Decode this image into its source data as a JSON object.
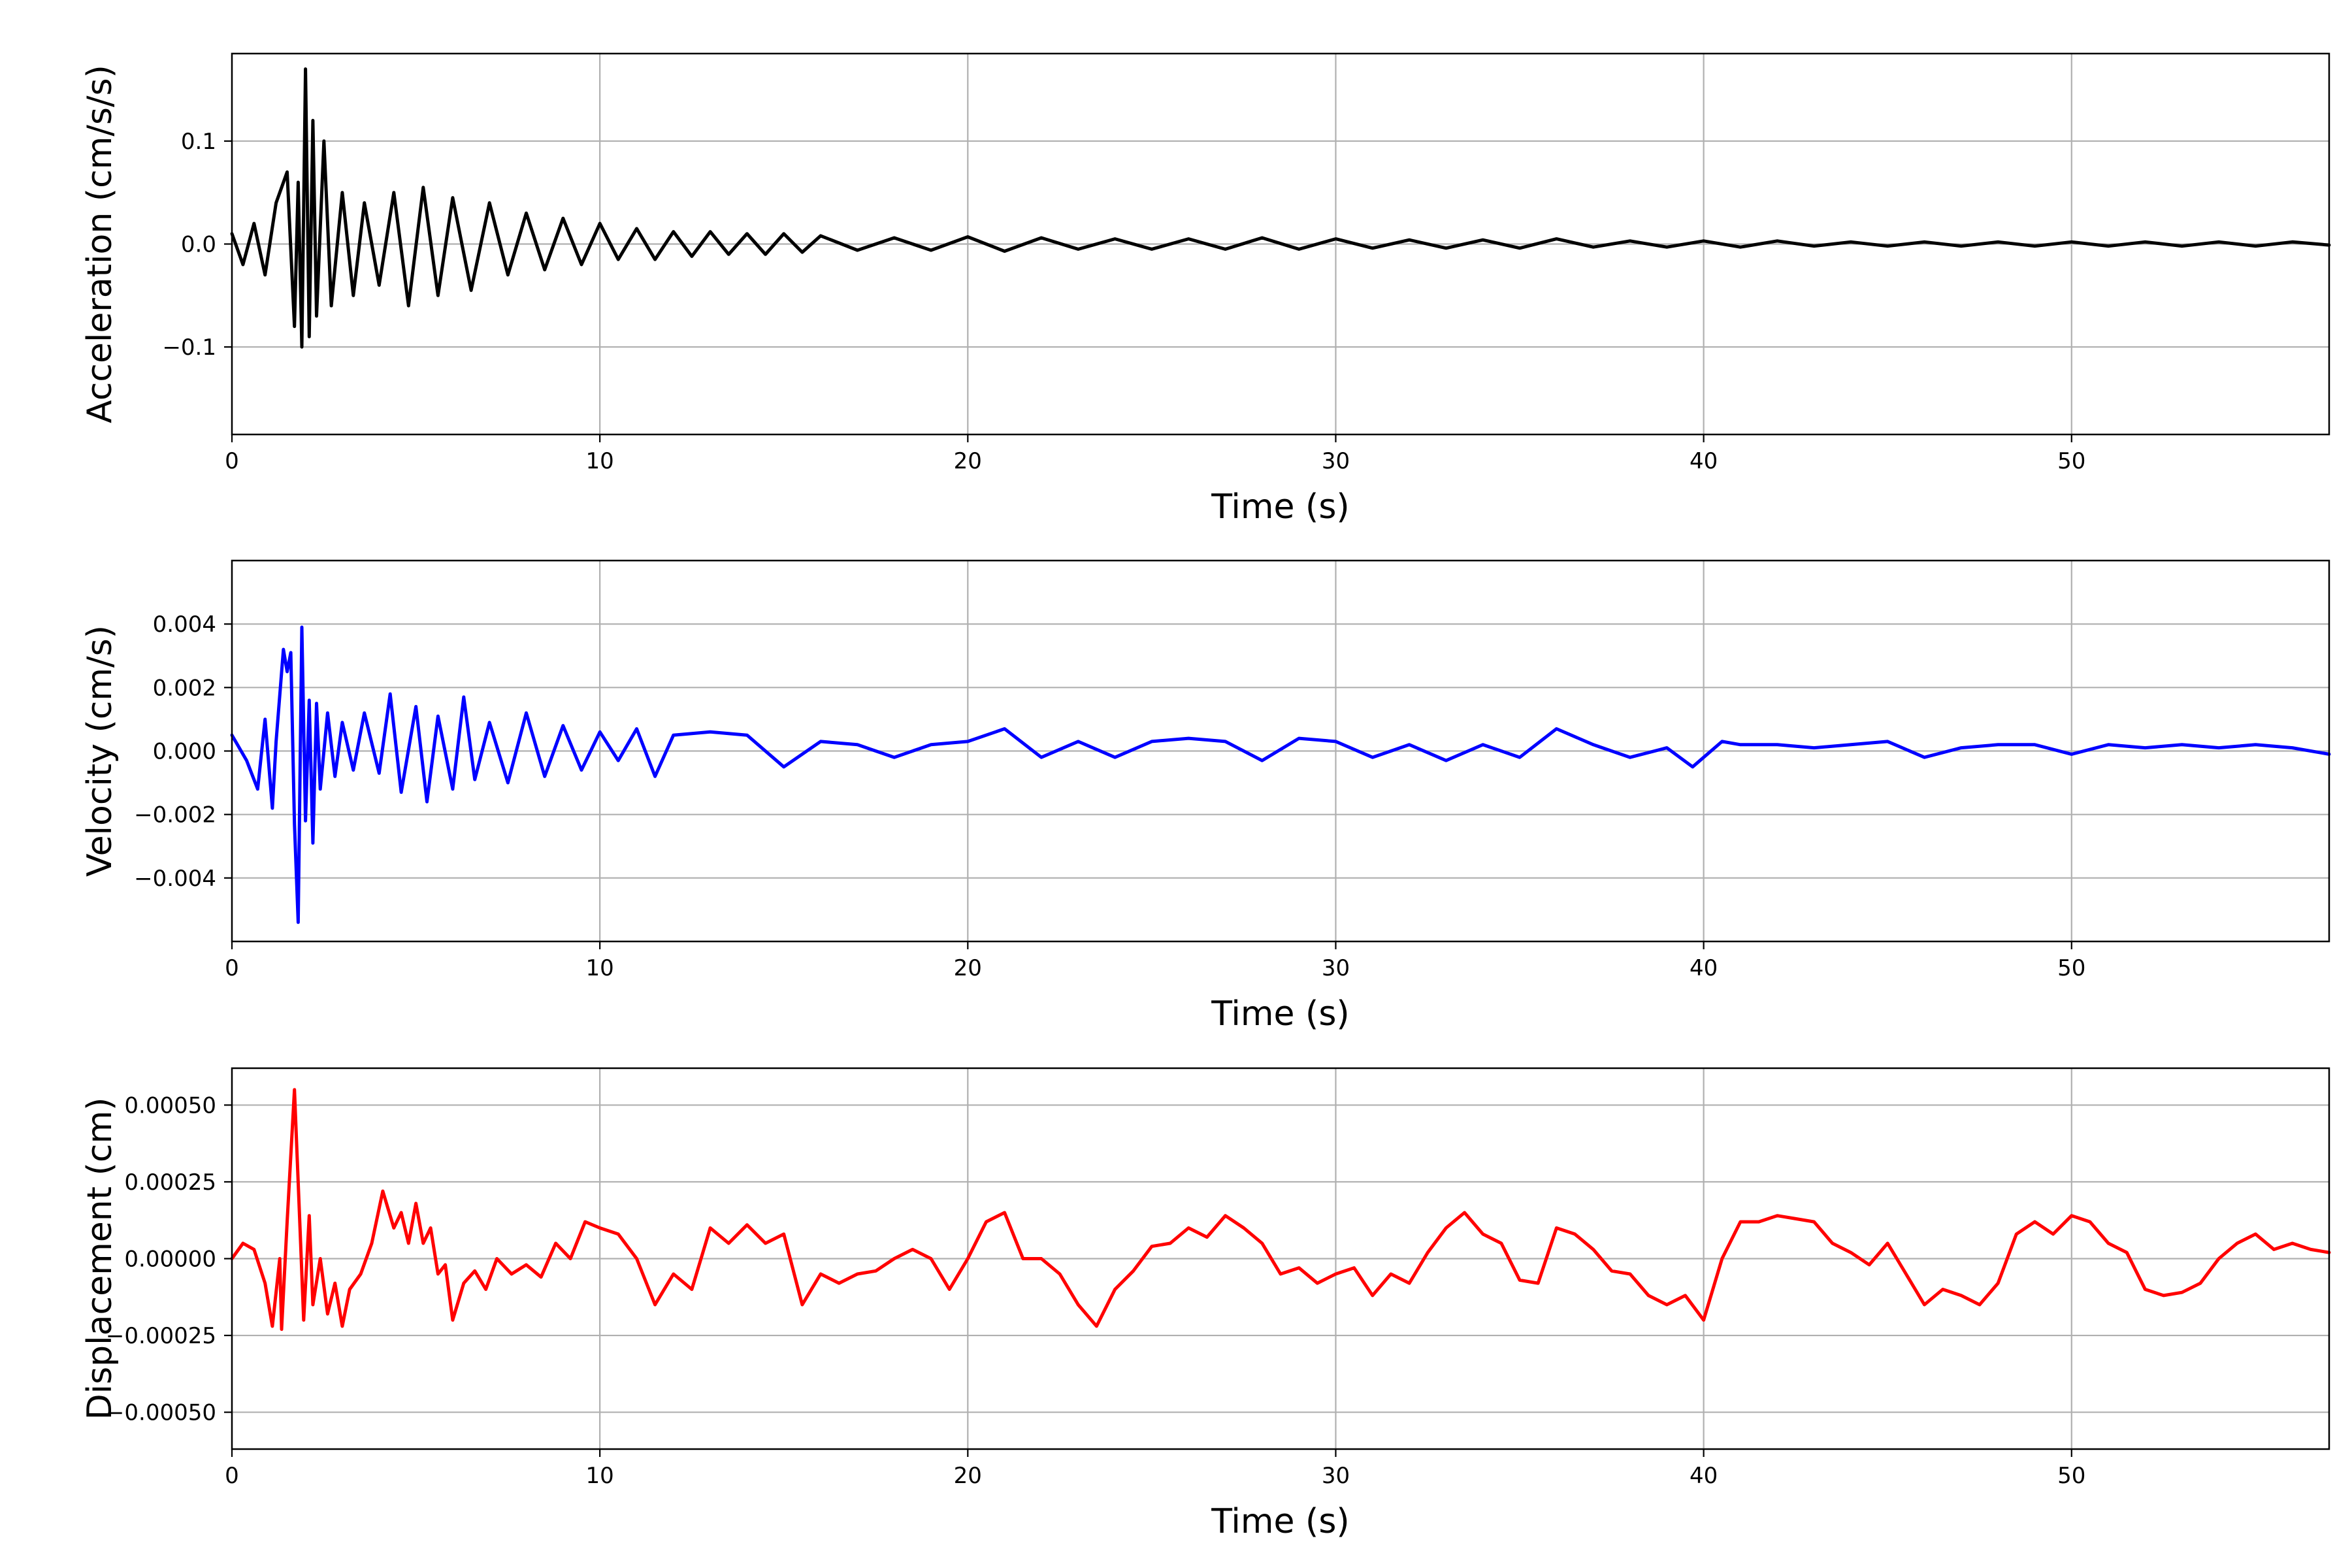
{
  "chart_data": [
    {
      "type": "line",
      "xlabel": "Time (s)",
      "ylabel": "Acceleration (cm/s/s)",
      "xlim": [
        0,
        57
      ],
      "ylim": [
        -0.185,
        0.185
      ],
      "xticks": [
        0,
        10,
        20,
        30,
        40,
        50
      ],
      "xtick_labels": [
        "0",
        "10",
        "20",
        "30",
        "40",
        "50"
      ],
      "yticks": [
        -0.1,
        0.0,
        0.1
      ],
      "ytick_labels": [
        "−0.1",
        "0.0",
        "0.1"
      ],
      "grid": true,
      "series": [
        {
          "color": "#000000",
          "x": [
            0,
            0.3,
            0.6,
            0.9,
            1.2,
            1.5,
            1.7,
            1.8,
            1.9,
            2.0,
            2.1,
            2.2,
            2.3,
            2.5,
            2.7,
            3.0,
            3.3,
            3.6,
            4.0,
            4.4,
            4.8,
            5.2,
            5.6,
            6.0,
            6.5,
            7.0,
            7.5,
            8.0,
            8.5,
            9.0,
            9.5,
            10.0,
            10.5,
            11.0,
            11.5,
            12.0,
            12.5,
            13.0,
            13.5,
            14.0,
            14.5,
            15.0,
            15.5,
            16.0,
            17.0,
            18.0,
            19.0,
            20.0,
            21.0,
            22.0,
            23.0,
            24.0,
            25.0,
            26.0,
            27.0,
            28.0,
            29.0,
            30.0,
            31.0,
            32.0,
            33.0,
            34.0,
            35.0,
            36.0,
            37.0,
            38.0,
            39.0,
            40.0,
            41.0,
            42.0,
            43.0,
            44.0,
            45.0,
            46.0,
            47.0,
            48.0,
            49.0,
            50.0,
            51.0,
            52.0,
            53.0,
            54.0,
            55.0,
            56.0,
            57.0
          ],
          "y": [
            0.01,
            -0.02,
            0.02,
            -0.03,
            0.04,
            0.07,
            -0.08,
            0.06,
            -0.1,
            0.17,
            -0.09,
            0.12,
            -0.07,
            0.1,
            -0.06,
            0.05,
            -0.05,
            0.04,
            -0.04,
            0.05,
            -0.06,
            0.055,
            -0.05,
            0.045,
            -0.045,
            0.04,
            -0.03,
            0.03,
            -0.025,
            0.025,
            -0.02,
            0.02,
            -0.015,
            0.015,
            -0.015,
            0.012,
            -0.012,
            0.012,
            -0.01,
            0.01,
            -0.01,
            0.01,
            -0.008,
            0.008,
            -0.006,
            0.006,
            -0.006,
            0.007,
            -0.007,
            0.006,
            -0.005,
            0.005,
            -0.005,
            0.005,
            -0.005,
            0.006,
            -0.005,
            0.005,
            -0.004,
            0.004,
            -0.004,
            0.004,
            -0.004,
            0.005,
            -0.003,
            0.003,
            -0.003,
            0.003,
            -0.003,
            0.003,
            -0.002,
            0.002,
            -0.002,
            0.002,
            -0.002,
            0.002,
            -0.002,
            0.002,
            -0.002,
            0.002,
            -0.002,
            0.002,
            -0.002,
            0.002,
            -0.001
          ]
        }
      ]
    },
    {
      "type": "line",
      "xlabel": "Time (s)",
      "ylabel": "Velocity (cm/s)",
      "xlim": [
        0,
        57
      ],
      "ylim": [
        -0.006,
        0.006
      ],
      "xticks": [
        0,
        10,
        20,
        30,
        40,
        50
      ],
      "xtick_labels": [
        "0",
        "10",
        "20",
        "30",
        "40",
        "50"
      ],
      "yticks": [
        -0.004,
        -0.002,
        0.0,
        0.002,
        0.004
      ],
      "ytick_labels": [
        "−0.004",
        "−0.002",
        "0.000",
        "0.002",
        "0.004"
      ],
      "grid": true,
      "series": [
        {
          "color": "#0000ff",
          "x": [
            0,
            0.4,
            0.7,
            0.9,
            1.1,
            1.2,
            1.4,
            1.5,
            1.6,
            1.7,
            1.8,
            1.9,
            2.0,
            2.1,
            2.2,
            2.3,
            2.4,
            2.6,
            2.8,
            3.0,
            3.3,
            3.6,
            4.0,
            4.3,
            4.6,
            5.0,
            5.3,
            5.6,
            6.0,
            6.3,
            6.6,
            7.0,
            7.5,
            8.0,
            8.5,
            9.0,
            9.5,
            10.0,
            10.5,
            11.0,
            11.5,
            12.0,
            13.0,
            14.0,
            15.0,
            16.0,
            17.0,
            18.0,
            19.0,
            20.0,
            21.0,
            22.0,
            23.0,
            24.0,
            25.0,
            26.0,
            27.0,
            28.0,
            29.0,
            30.0,
            31.0,
            32.0,
            33.0,
            34.0,
            35.0,
            36.0,
            37.0,
            38.0,
            39.0,
            39.7,
            40.5,
            41.0,
            42.0,
            43.0,
            44.0,
            45.0,
            46.0,
            47.0,
            48.0,
            49.0,
            50.0,
            51.0,
            52.0,
            53.0,
            54.0,
            55.0,
            56.0,
            57.0
          ],
          "y": [
            0.0005,
            -0.0003,
            -0.0012,
            0.001,
            -0.0018,
            0.0003,
            0.0032,
            0.0025,
            0.0031,
            -0.0023,
            -0.0054,
            0.0039,
            -0.0022,
            0.0016,
            -0.0029,
            0.0015,
            -0.0012,
            0.0012,
            -0.0008,
            0.0009,
            -0.0006,
            0.0012,
            -0.0007,
            0.0018,
            -0.0013,
            0.0014,
            -0.0016,
            0.0011,
            -0.0012,
            0.0017,
            -0.0009,
            0.0009,
            -0.001,
            0.0012,
            -0.0008,
            0.0008,
            -0.0006,
            0.0006,
            -0.0003,
            0.0007,
            -0.0008,
            0.0005,
            0.0006,
            0.0005,
            -0.0005,
            0.0003,
            0.0002,
            -0.0002,
            0.0002,
            0.0003,
            0.0007,
            -0.0002,
            0.0003,
            -0.0002,
            0.0003,
            0.0004,
            0.0003,
            -0.0003,
            0.0004,
            0.0003,
            -0.0002,
            0.0002,
            -0.0003,
            0.0002,
            -0.0002,
            0.0007,
            0.0002,
            -0.0002,
            0.0001,
            -0.0005,
            0.0003,
            0.0002,
            0.0002,
            0.0001,
            0.0002,
            0.0003,
            -0.0002,
            0.0001,
            0.0002,
            0.0002,
            -0.0001,
            0.0002,
            0.0001,
            0.0002,
            0.0001,
            0.0002,
            0.0001,
            -0.0001
          ]
        }
      ]
    },
    {
      "type": "line",
      "xlabel": "Time (s)",
      "ylabel": "Displacement (cm)",
      "xlim": [
        0,
        57
      ],
      "ylim": [
        -0.00062,
        0.00062
      ],
      "xticks": [
        0,
        10,
        20,
        30,
        40,
        50
      ],
      "xtick_labels": [
        "0",
        "10",
        "20",
        "30",
        "40",
        "50"
      ],
      "yticks": [
        -0.0005,
        -0.00025,
        0.0,
        0.00025,
        0.0005
      ],
      "ytick_labels": [
        "−0.00050",
        "−0.00025",
        "0.00000",
        "0.00025",
        "0.00050"
      ],
      "grid": true,
      "series": [
        {
          "color": "#ff0000",
          "x": [
            0,
            0.3,
            0.6,
            0.9,
            1.1,
            1.3,
            1.35,
            1.5,
            1.7,
            1.85,
            1.95,
            2.1,
            2.2,
            2.4,
            2.6,
            2.8,
            3.0,
            3.2,
            3.5,
            3.8,
            4.1,
            4.4,
            4.6,
            4.8,
            5.0,
            5.2,
            5.4,
            5.6,
            5.8,
            6.0,
            6.3,
            6.6,
            6.9,
            7.2,
            7.6,
            8.0,
            8.4,
            8.8,
            9.2,
            9.6,
            10.0,
            10.5,
            11.0,
            11.5,
            12.0,
            12.5,
            13.0,
            13.5,
            14.0,
            14.5,
            15.0,
            15.5,
            16.0,
            16.5,
            17.0,
            17.5,
            18.0,
            18.5,
            19.0,
            19.5,
            20.0,
            20.5,
            21.0,
            21.5,
            22.0,
            22.5,
            23.0,
            23.5,
            24.0,
            24.5,
            25.0,
            25.5,
            26.0,
            26.5,
            27.0,
            27.5,
            28.0,
            28.5,
            29.0,
            29.5,
            30.0,
            30.5,
            31.0,
            31.5,
            32.0,
            32.5,
            33.0,
            33.5,
            34.0,
            34.5,
            35.0,
            35.5,
            36.0,
            36.5,
            37.0,
            37.5,
            38.0,
            38.5,
            39.0,
            39.5,
            40.0,
            40.5,
            41.0,
            41.5,
            42.0,
            42.5,
            43.0,
            43.5,
            44.0,
            44.5,
            45.0,
            45.5,
            46.0,
            46.5,
            47.0,
            47.5,
            48.0,
            48.5,
            49.0,
            49.5,
            50.0,
            50.5,
            51.0,
            51.5,
            52.0,
            52.5,
            53.0,
            53.5,
            54.0,
            54.5,
            55.0,
            55.5,
            56.0,
            56.5,
            57.0
          ],
          "y": [
            0.0,
            5e-05,
            3e-05,
            -8e-05,
            -0.00022,
            0.0,
            -0.00023,
            0.00012,
            0.00055,
            0.0001,
            -0.0002,
            0.00014,
            -0.00015,
            0.0,
            -0.00018,
            -8e-05,
            -0.00022,
            -0.0001,
            -5e-05,
            5e-05,
            0.00022,
            0.0001,
            0.00015,
            5e-05,
            0.00018,
            5e-05,
            0.0001,
            -5e-05,
            -2e-05,
            -0.0002,
            -8e-05,
            -4e-05,
            -0.0001,
            0.0,
            -5e-05,
            -2e-05,
            -6e-05,
            5e-05,
            0.0,
            0.00012,
            0.0001,
            8e-05,
            0.0,
            -0.00015,
            -5e-05,
            -0.0001,
            0.0001,
            5e-05,
            0.00011,
            5e-05,
            8e-05,
            -0.00015,
            -5e-05,
            -8e-05,
            -5e-05,
            -4e-05,
            0.0,
            3e-05,
            0.0,
            -0.0001,
            0.0,
            0.00012,
            0.00015,
            0.0,
            0.0,
            -5e-05,
            -0.00015,
            -0.00022,
            -0.0001,
            -4e-05,
            4e-05,
            5e-05,
            0.0001,
            7e-05,
            0.00014,
            0.0001,
            5e-05,
            -5e-05,
            -3e-05,
            -8e-05,
            -5e-05,
            -3e-05,
            -0.00012,
            -5e-05,
            -8e-05,
            2e-05,
            0.0001,
            0.00015,
            8e-05,
            5e-05,
            -7e-05,
            -8e-05,
            0.0001,
            8e-05,
            3e-05,
            -4e-05,
            -5e-05,
            -0.00012,
            -0.00015,
            -0.00012,
            -0.0002,
            0.0,
            0.00012,
            0.00012,
            0.00014,
            0.00013,
            0.00012,
            5e-05,
            2e-05,
            -2e-05,
            5e-05,
            -5e-05,
            -0.00015,
            -0.0001,
            -0.00012,
            -0.00015,
            -8e-05,
            8e-05,
            0.00012,
            8e-05,
            0.00014,
            0.00012,
            5e-05,
            2e-05,
            -0.0001,
            -0.00012,
            -0.00011,
            -8e-05,
            0.0,
            5e-05,
            8e-05,
            3e-05,
            5e-05,
            3e-05,
            2e-05
          ]
        }
      ]
    }
  ]
}
